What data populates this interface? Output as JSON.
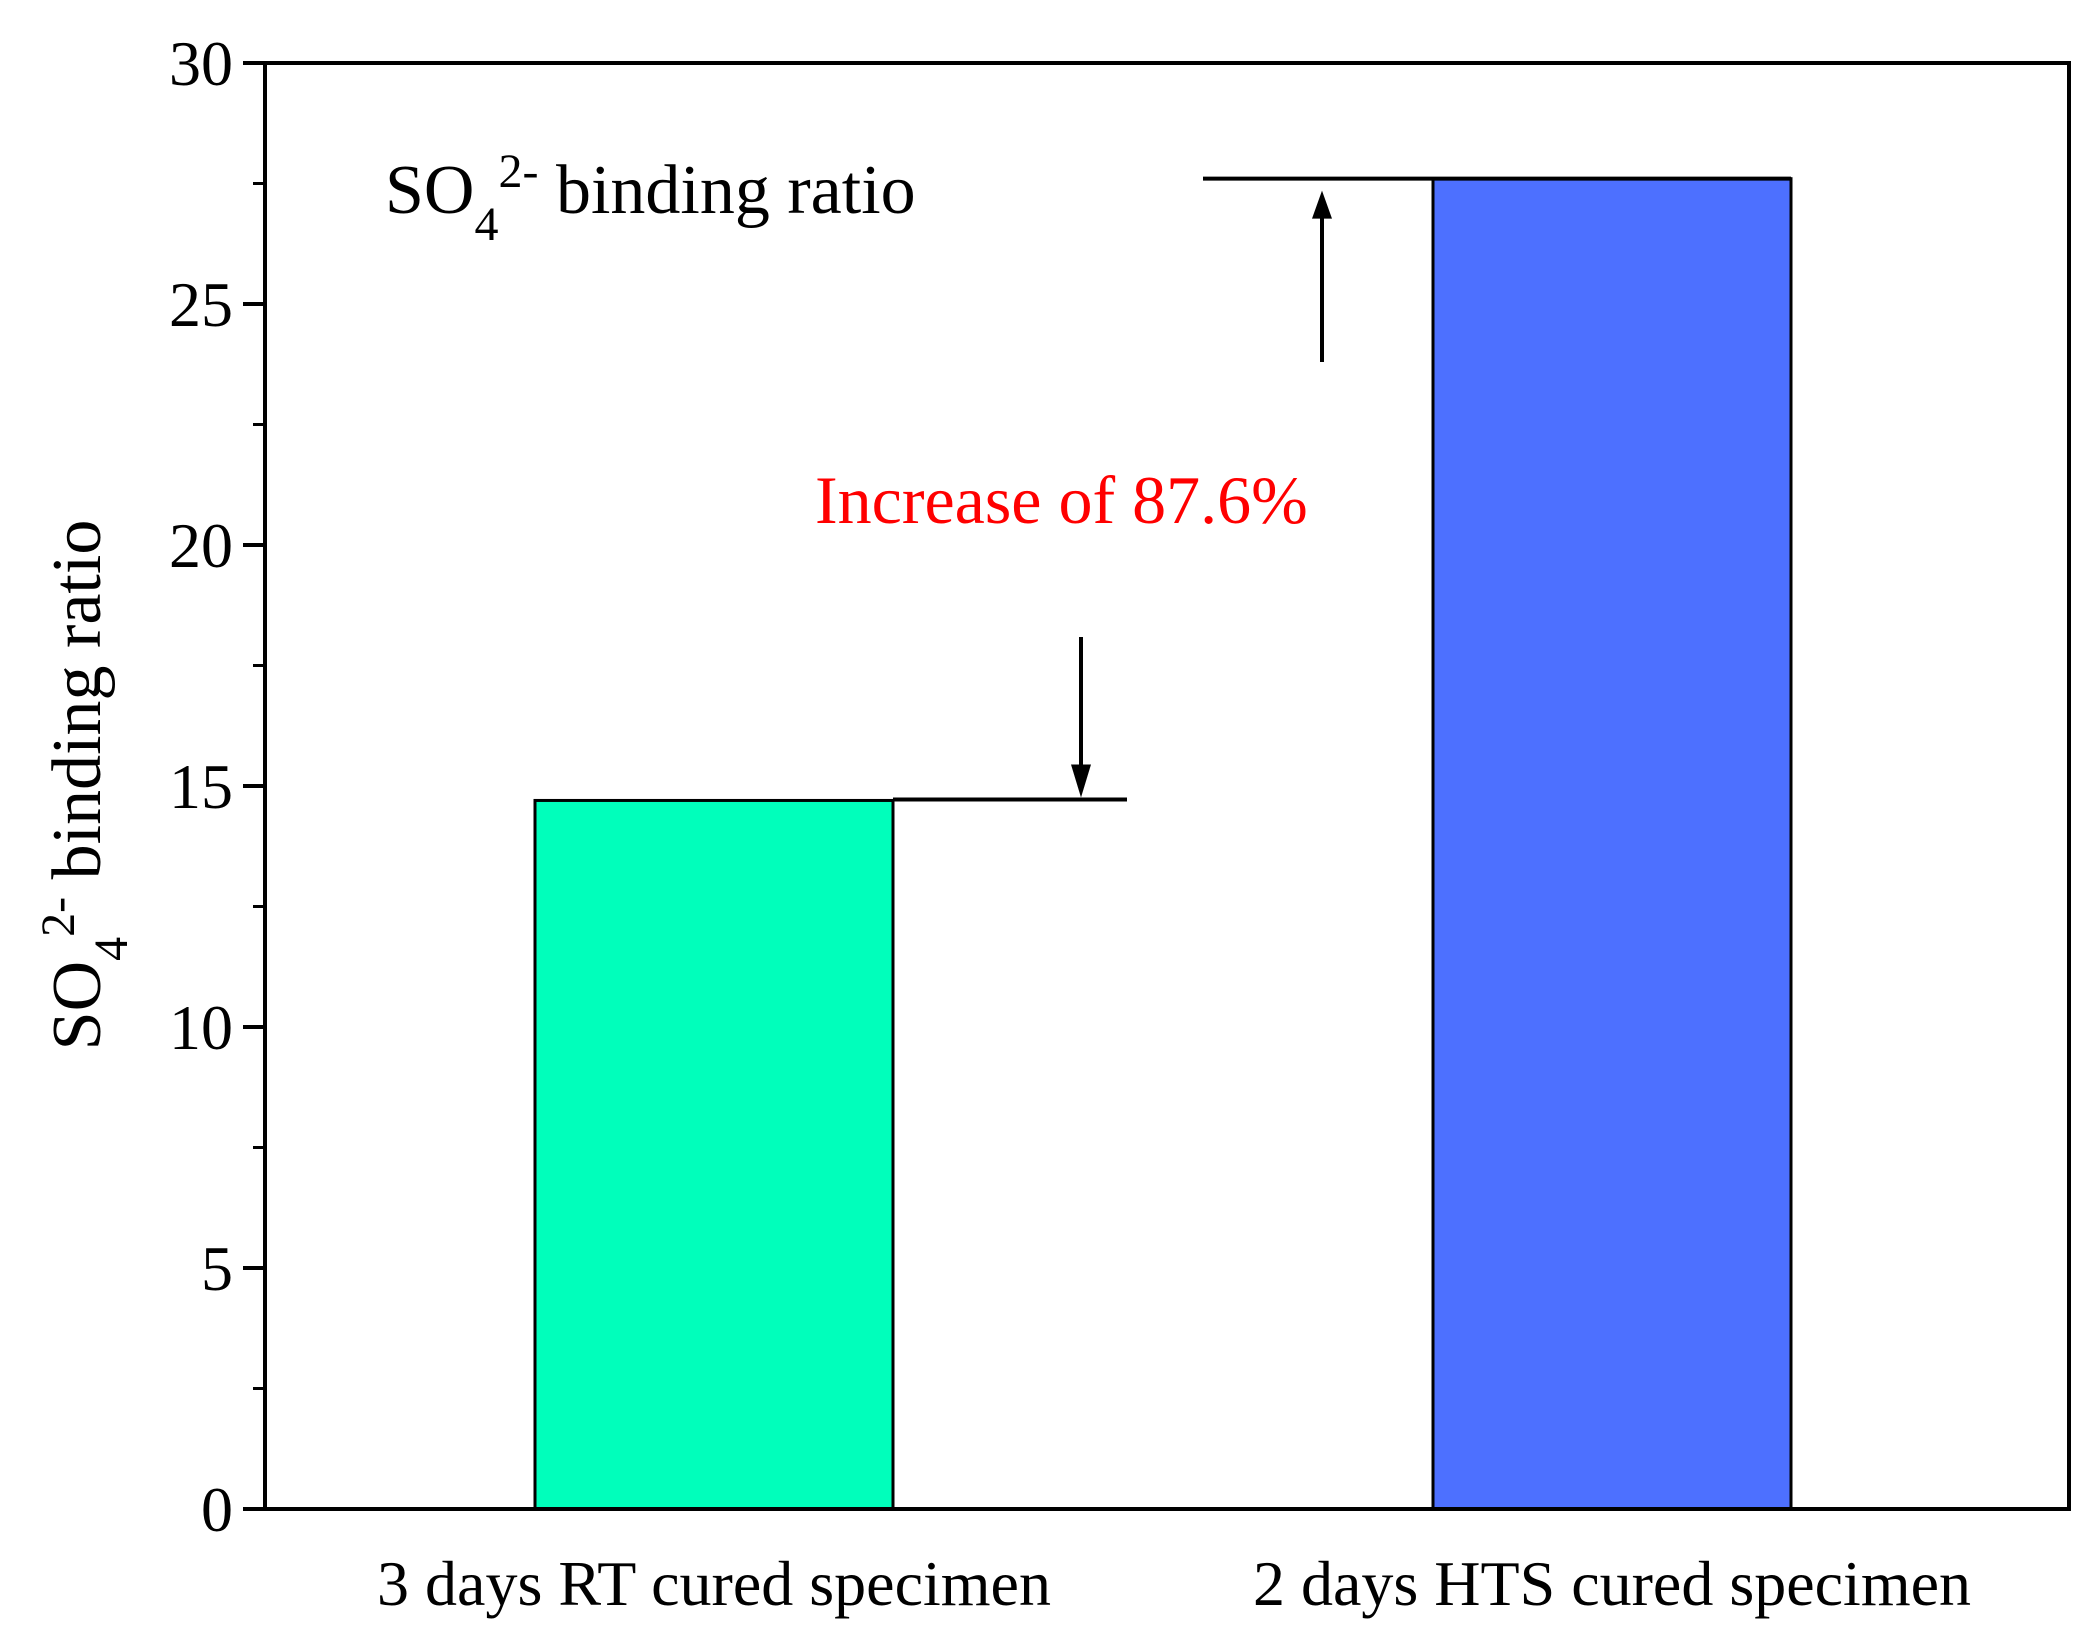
{
  "chart_data": {
    "type": "bar",
    "categories": [
      "3 days RT cured specimen",
      "2 days HTS cured specimen"
    ],
    "values": [
      14.7,
      27.6
    ],
    "colors": [
      "#00FFBB",
      "#4D70FF"
    ],
    "ylim": [
      0,
      30
    ],
    "yticks": [
      0,
      5,
      10,
      15,
      20,
      25,
      30
    ],
    "ytick_labels": [
      "0",
      "5",
      "10",
      "15",
      "20",
      "25",
      "30"
    ],
    "ylabel": {
      "base": "SO",
      "sub": "4",
      "sup": "2-",
      "rest": " binding ratio"
    },
    "legend": {
      "base": "SO",
      "sub": "4",
      "sup": "2-",
      "rest": " binding ratio",
      "location": "top-left"
    },
    "annotation": {
      "text": "Increase of 87.6%",
      "color": "#FF0000"
    },
    "grid": false
  }
}
